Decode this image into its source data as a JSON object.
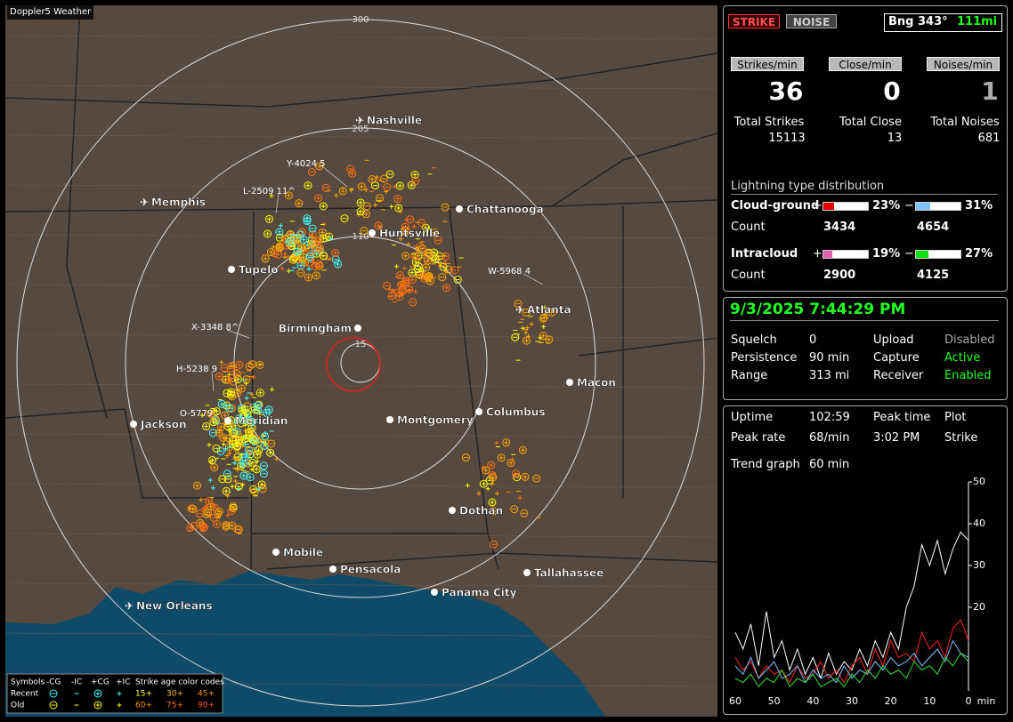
{
  "map": {
    "title": "Doppler5 Weather",
    "range_labels": [
      "300",
      "205",
      "110",
      "15"
    ],
    "cities": [
      "Nashville",
      "Memphis",
      "Chattanooga",
      "Huntsville",
      "Tupelo",
      "Birmingham",
      "Atlanta",
      "Macon",
      "Jackson",
      "Meridian",
      "Montgomery",
      "Columbus",
      "Dothan",
      "Mobile",
      "Pensacola",
      "Tallahassee",
      "Panama City",
      "New Orleans"
    ],
    "strike_labels": [
      "Y-4024 5",
      "L-2509 11^",
      "X-3348 8^",
      "H-5238 9",
      "O-5779",
      "W-5968 4"
    ]
  },
  "legend": {
    "symbols": "Symbols",
    "types": [
      "-CG",
      "-IC",
      "+CG",
      "+IC"
    ],
    "age_title": "Strike age color codes",
    "rows": [
      "Recent",
      "Old"
    ],
    "recent_ages": [
      "15+",
      "30+",
      "45+"
    ],
    "old_ages": [
      "60+",
      "75+",
      "90+"
    ]
  },
  "status": {
    "buttons": [
      "STRIKE",
      "NOISE"
    ],
    "bearing": "Bng 343°",
    "distance": "111mi",
    "rates": [
      {
        "label": "Strikes/min",
        "value": 36
      },
      {
        "label": "Close/min",
        "value": 0
      },
      {
        "label": "Noises/min",
        "value": 1
      }
    ],
    "totals": [
      {
        "label": "Total Strikes",
        "value": 15113
      },
      {
        "label": "Total Close",
        "value": 13
      },
      {
        "label": "Total Noises",
        "value": 681
      }
    ]
  },
  "distribution": {
    "title": "Lightning type distribution",
    "count_label": "Count",
    "rows": [
      {
        "label": "Cloud-ground",
        "pos_sign": "+",
        "pos": {
          "value": 23,
          "label": "23%"
        },
        "neg_sign": "−",
        "neg": {
          "value": 31,
          "label": "31%"
        },
        "pos_count": 3434,
        "neg_count": 4654
      },
      {
        "label": "Intracloud",
        "pos_sign": "+",
        "pos": {
          "value": 19,
          "label": "19%"
        },
        "neg_sign": "−",
        "neg": {
          "value": 27,
          "label": "27%"
        },
        "pos_count": 2900,
        "neg_count": 4125
      }
    ]
  },
  "clock": {
    "datetime": "9/3/2025 7:44:29 PM",
    "settings": [
      {
        "label": "Squelch",
        "value": 0
      },
      {
        "label": "Persistence",
        "value": "90 min"
      },
      {
        "label": "Range",
        "value": "313 mi"
      },
      {
        "label": "Upload",
        "value": "Disabled"
      },
      {
        "label": "Capture",
        "value": "Active"
      },
      {
        "label": "Receiver",
        "value": "Enabled"
      }
    ]
  },
  "stats": {
    "rows": [
      {
        "label": "Uptime",
        "value": "102:59"
      },
      {
        "label": "Peak time",
        "value": "3:02 PM"
      },
      {
        "label": "Plot",
        "value": "Strike"
      },
      {
        "label": "Peak rate",
        "value": "68/min"
      }
    ],
    "trend_label": "Trend graph",
    "trend_window": "60 min"
  },
  "chart_data": {
    "type": "line",
    "x_label": "min",
    "x": [
      60,
      58,
      56,
      54,
      52,
      50,
      48,
      46,
      44,
      42,
      40,
      38,
      36,
      34,
      32,
      30,
      28,
      26,
      24,
      22,
      20,
      18,
      16,
      14,
      12,
      10,
      8,
      6,
      4,
      2,
      0
    ],
    "xlim": [
      60,
      0
    ],
    "xticks": [
      60,
      50,
      40,
      30,
      20,
      10,
      0
    ],
    "ylim": [
      0,
      50
    ],
    "yticks": [
      20,
      30,
      40,
      50
    ],
    "series": [
      {
        "color": "#ffffff",
        "values": [
          14,
          10,
          16,
          6,
          19,
          8,
          12,
          5,
          10,
          4,
          8,
          3,
          9,
          4,
          7,
          5,
          10,
          6,
          12,
          8,
          14,
          10,
          20,
          25,
          35,
          30,
          36,
          28,
          34,
          38,
          36
        ]
      },
      {
        "color": "#ff2020",
        "values": [
          8,
          5,
          7,
          3,
          6,
          4,
          5,
          2,
          6,
          3,
          4,
          7,
          3,
          5,
          2,
          6,
          8,
          4,
          10,
          6,
          12,
          8,
          9,
          7,
          14,
          10,
          12,
          8,
          15,
          17,
          12
        ]
      },
      {
        "color": "#80c0ff",
        "values": [
          6,
          4,
          8,
          3,
          5,
          7,
          3,
          4,
          6,
          2,
          5,
          3,
          4,
          2,
          6,
          3,
          5,
          4,
          7,
          5,
          8,
          6,
          7,
          9,
          6,
          8,
          10,
          7,
          12,
          9,
          8
        ]
      },
      {
        "color": "#30e030",
        "values": [
          3,
          2,
          4,
          1,
          3,
          2,
          5,
          1,
          3,
          2,
          4,
          1,
          2,
          3,
          1,
          4,
          2,
          5,
          3,
          6,
          4,
          5,
          3,
          7,
          5,
          6,
          4,
          8,
          6,
          9,
          7
        ]
      }
    ]
  }
}
